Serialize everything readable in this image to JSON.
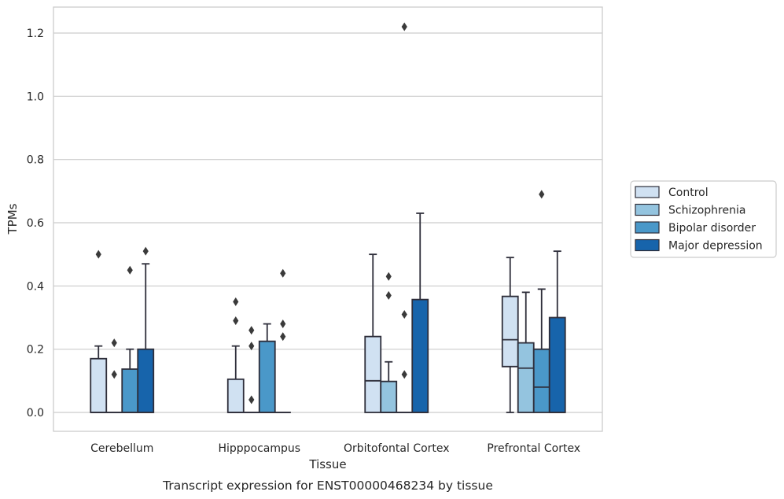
{
  "chart_data": {
    "type": "box",
    "title": "",
    "caption": "Transcript expression for ENST00000468234 by tissue",
    "xlabel": "Tissue",
    "ylabel": "TPMs",
    "ylim": [
      -0.06,
      1.28
    ],
    "yticks": [
      0.0,
      0.2,
      0.4,
      0.6,
      0.8,
      1.0,
      1.2
    ],
    "ytick_labels": [
      "0.0",
      "0.2",
      "0.4",
      "0.6",
      "0.8",
      "1.0",
      "1.2"
    ],
    "grid": "horizontal",
    "legend_position": "right",
    "categories": [
      "Cerebellum",
      "Hipppocampus",
      "Orbitofontal Cortex",
      "Prefrontal Cortex"
    ],
    "series": [
      {
        "name": "Control",
        "color": "#d0e1f2",
        "boxes": [
          {
            "whislo": 0.0,
            "q1": 0.0,
            "med": 0.0,
            "q3": 0.17,
            "whishi": 0.21,
            "fliers": [
              0.5
            ]
          },
          {
            "whislo": 0.0,
            "q1": 0.0,
            "med": 0.0,
            "q3": 0.105,
            "whishi": 0.21,
            "fliers": [
              0.29,
              0.35
            ]
          },
          {
            "whislo": 0.0,
            "q1": 0.0,
            "med": 0.1,
            "q3": 0.24,
            "whishi": 0.5,
            "fliers": []
          },
          {
            "whislo": 0.0,
            "q1": 0.145,
            "med": 0.23,
            "q3": 0.367,
            "whishi": 0.49,
            "fliers": []
          }
        ]
      },
      {
        "name": "Schizophrenia",
        "color": "#94c4df",
        "boxes": [
          {
            "whislo": 0.0,
            "q1": 0.0,
            "med": 0.0,
            "q3": 0.0,
            "whishi": 0.0,
            "fliers": [
              0.12,
              0.22
            ]
          },
          {
            "whislo": 0.0,
            "q1": 0.0,
            "med": 0.0,
            "q3": 0.0,
            "whishi": 0.0,
            "fliers": [
              0.04,
              0.21,
              0.26
            ]
          },
          {
            "whislo": 0.0,
            "q1": 0.0,
            "med": 0.0,
            "q3": 0.098,
            "whishi": 0.16,
            "fliers": [
              0.37,
              0.43
            ]
          },
          {
            "whislo": 0.0,
            "q1": 0.0,
            "med": 0.14,
            "q3": 0.22,
            "whishi": 0.38,
            "fliers": []
          }
        ]
      },
      {
        "name": "Bipolar disorder",
        "color": "#4a98c9",
        "boxes": [
          {
            "whislo": 0.0,
            "q1": 0.0,
            "med": 0.0,
            "q3": 0.137,
            "whishi": 0.2,
            "fliers": [
              0.45
            ]
          },
          {
            "whislo": 0.0,
            "q1": 0.0,
            "med": 0.0,
            "q3": 0.225,
            "whishi": 0.28,
            "fliers": []
          },
          {
            "whislo": 0.0,
            "q1": 0.0,
            "med": 0.0,
            "q3": 0.0,
            "whishi": 0.0,
            "fliers": [
              0.12,
              0.31,
              1.22
            ]
          },
          {
            "whislo": 0.0,
            "q1": 0.0,
            "med": 0.08,
            "q3": 0.2,
            "whishi": 0.39,
            "fliers": [
              0.69
            ]
          }
        ]
      },
      {
        "name": "Major depression",
        "color": "#1764ab",
        "boxes": [
          {
            "whislo": 0.0,
            "q1": 0.0,
            "med": 0.0,
            "q3": 0.2,
            "whishi": 0.47,
            "fliers": [
              0.51
            ]
          },
          {
            "whislo": 0.0,
            "q1": 0.0,
            "med": 0.0,
            "q3": 0.0,
            "whishi": 0.0,
            "fliers": [
              0.24,
              0.28,
              0.44
            ]
          },
          {
            "whislo": 0.0,
            "q1": 0.0,
            "med": 0.0,
            "q3": 0.357,
            "whishi": 0.63,
            "fliers": []
          },
          {
            "whislo": 0.0,
            "q1": 0.0,
            "med": 0.0,
            "q3": 0.3,
            "whishi": 0.51,
            "fliers": []
          }
        ]
      }
    ]
  }
}
